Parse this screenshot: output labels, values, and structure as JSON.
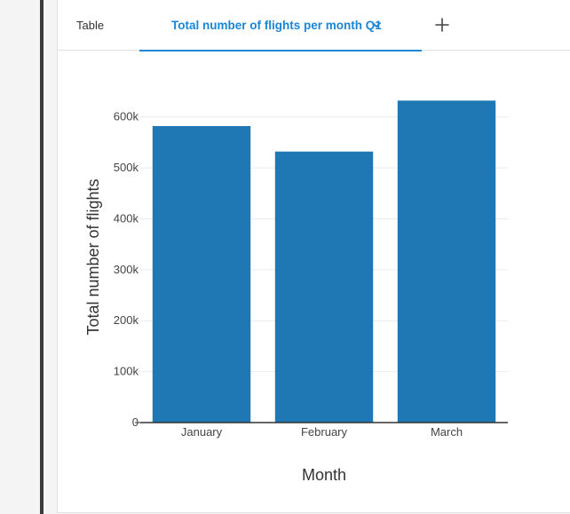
{
  "tabs": {
    "table_label": "Table",
    "active_label": "Total number of flights per month Q1",
    "chevron_icon": "chevron-down-icon",
    "add_icon": "plus-icon"
  },
  "colors": {
    "accent": "#1a86d6",
    "bar": "#1f77b4"
  },
  "chart_data": {
    "type": "bar",
    "categories": [
      "January",
      "February",
      "March"
    ],
    "values": [
      582000,
      532000,
      632000
    ],
    "title": "",
    "xlabel": "Month",
    "ylabel": "Total number of flights",
    "ylim": [
      0,
      650000
    ],
    "yticks": [
      0,
      100000,
      200000,
      300000,
      400000,
      500000,
      600000
    ],
    "ytick_labels": [
      "0",
      "100k",
      "200k",
      "300k",
      "400k",
      "500k",
      "600k"
    ],
    "grid": true,
    "legend": "none"
  }
}
